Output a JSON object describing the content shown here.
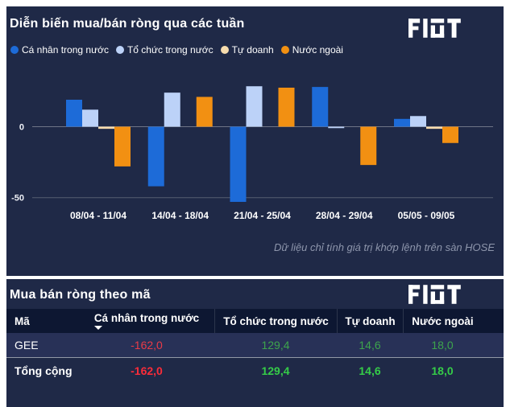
{
  "colors": {
    "page_bg": "#ffffff",
    "panel_bg": "#1f2947",
    "table_header_bg": "#0d1732",
    "table_row_bg": "#283157",
    "negative": "#ea3b47",
    "negative_total": "#fb2c39",
    "positive": "#3da44c",
    "positive_total": "#35cc48",
    "gridline_zero": "#6e7486",
    "gridline_minus50": "#575e71",
    "axis_text": "#eef0f6",
    "footnote_text": "#8e96ac"
  },
  "brand": {
    "logo_text": "FIDT"
  },
  "chart_panel": {
    "title": "Diễn biến mua/bán ròng qua các tuần",
    "footnote": "Dữ liệu chỉ tính giá trị khớp lệnh trên sàn HOSE"
  },
  "table_panel": {
    "title": "Mua bán ròng theo mã"
  },
  "chart_data": [
    {
      "type": "bar",
      "title": "Diễn biến mua/bán ròng qua các tuần",
      "categories": [
        "08/04 - 11/04",
        "14/04 - 18/04",
        "21/04 - 25/04",
        "28/04 - 29/04",
        "05/05 - 09/05"
      ],
      "series": [
        {
          "name": "Cá nhân trong nước",
          "color": "#1d6bd8",
          "values": [
            19,
            -42,
            -53,
            28,
            5.5
          ]
        },
        {
          "name": "Tổ chức trong nước",
          "color": "#bcd2f8",
          "values": [
            12,
            24,
            28.5,
            -1,
            7.5
          ]
        },
        {
          "name": "Tự doanh",
          "color": "#f7dcae",
          "values": [
            -1.5,
            0,
            0,
            0,
            -1.5
          ]
        },
        {
          "name": "Nước ngoài",
          "color": "#f29012",
          "values": [
            -28,
            21,
            27.5,
            -27,
            -11.5
          ]
        }
      ],
      "ylim": [
        -60,
        33
      ],
      "yticks": [
        0,
        -50
      ],
      "grid": "horizontal",
      "legend_position": "top"
    },
    {
      "type": "table",
      "title": "Mua bán ròng theo mã",
      "columns": [
        "Mã",
        "Cá nhân trong nước",
        "Tổ chức trong nước",
        "Tự doanh",
        "Nước ngoài"
      ],
      "sort": {
        "column": "Cá nhân trong nước",
        "direction": "desc"
      },
      "rows": [
        [
          "GEE",
          "-162,0",
          "129,4",
          "14,6",
          "18,0"
        ]
      ],
      "total_row": [
        "Tổng cộng",
        "-162,0",
        "129,4",
        "14,6",
        "18,0"
      ]
    }
  ]
}
